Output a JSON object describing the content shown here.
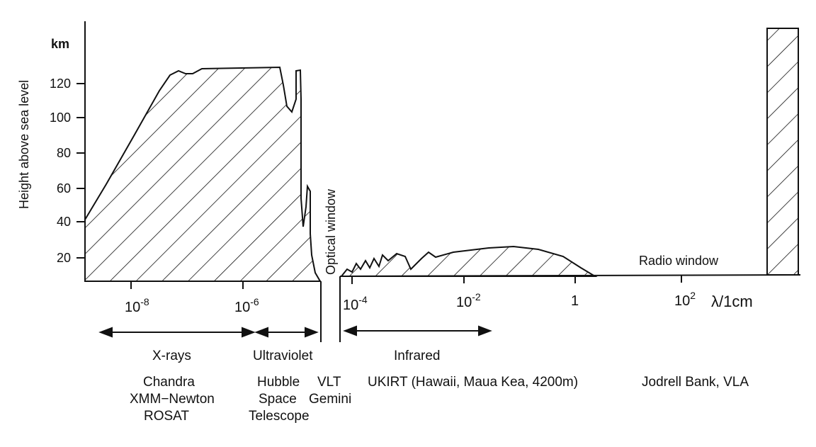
{
  "axes": {
    "y_unit": "km",
    "y_label": "Height above sea level",
    "y_ticks": [
      "120",
      "100",
      "80",
      "60",
      "40",
      "20"
    ],
    "x_unit": "λ/1cm",
    "x_ticks": [
      {
        "base": "10",
        "exp": "-8"
      },
      {
        "base": "10",
        "exp": "-6"
      },
      {
        "base": "10",
        "exp": "-4"
      },
      {
        "base": "10",
        "exp": "-2"
      },
      {
        "base": "1",
        "exp": ""
      },
      {
        "base": "10",
        "exp": "2"
      }
    ]
  },
  "windows": {
    "optical": "Optical window",
    "radio": "Radio window"
  },
  "bands": [
    {
      "name": "X-rays",
      "instruments": [
        "Chandra",
        "XMM−Newton",
        "ROSAT"
      ]
    },
    {
      "name": "Ultraviolet",
      "instruments": [
        "Hubble",
        "Space",
        "Telescope"
      ]
    },
    {
      "name": "",
      "instruments": [
        "VLT",
        "Gemini"
      ]
    },
    {
      "name": "Infrared",
      "instruments": [
        "UKIRT (Hawaii, Maua Kea, 4200m)"
      ]
    },
    {
      "name": "",
      "instruments": [
        "Jodrell Bank, VLA"
      ]
    }
  ]
}
